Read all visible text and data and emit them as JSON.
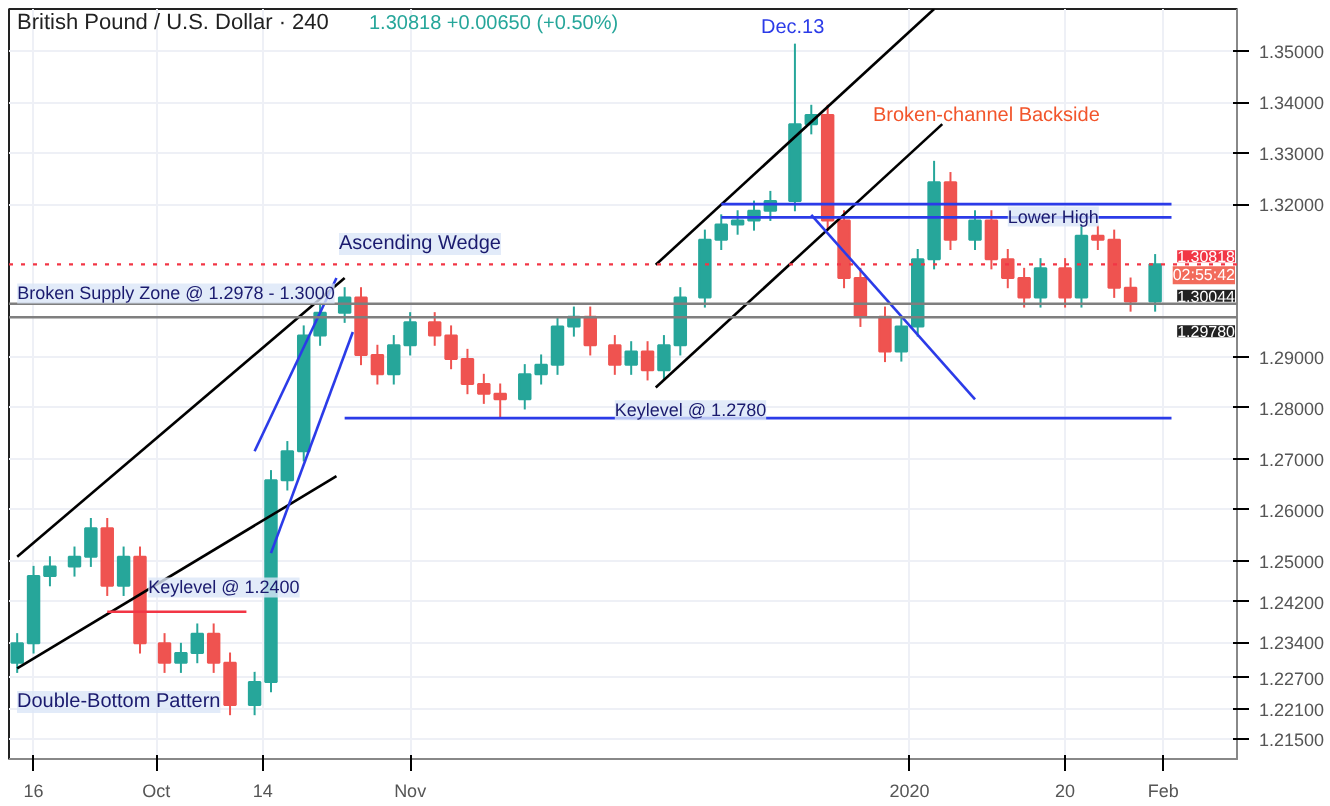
{
  "chart_data": {
    "type": "candlestick",
    "title": "British Pound / U.S. Dollar · 240",
    "subtitle": "1.30818  +0.00650 (+0.50%)",
    "x": [
      "2019-09-14",
      "2019-09-16",
      "2019-09-18",
      "2019-09-21",
      "2019-09-23",
      "2019-09-25",
      "2019-09-27",
      "2019-09-29",
      "2019-10-02",
      "2019-10-04",
      "2019-10-06",
      "2019-10-08",
      "2019-10-10",
      "2019-10-13",
      "2019-10-15",
      "2019-10-17",
      "2019-10-19",
      "2019-10-21",
      "2019-10-24",
      "2019-10-26",
      "2019-10-28",
      "2019-10-30",
      "2019-11-01",
      "2019-11-04",
      "2019-11-06",
      "2019-11-08",
      "2019-11-10",
      "2019-11-12",
      "2019-11-15",
      "2019-11-17",
      "2019-11-19",
      "2019-11-21",
      "2019-11-23",
      "2019-11-26",
      "2019-11-28",
      "2019-11-30",
      "2019-12-02",
      "2019-12-04",
      "2019-12-07",
      "2019-12-09",
      "2019-12-11",
      "2019-12-13",
      "2019-12-15",
      "2019-12-18",
      "2019-12-20",
      "2019-12-22",
      "2019-12-24",
      "2019-12-26",
      "2019-12-29",
      "2019-12-31",
      "2020-01-02",
      "2020-01-04",
      "2020-01-06",
      "2020-01-09",
      "2020-01-11",
      "2020-01-13",
      "2020-01-15",
      "2020-01-17",
      "2020-01-20",
      "2020-01-22",
      "2020-01-24",
      "2020-01-26",
      "2020-01-28",
      "2020-01-31"
    ],
    "ohlc": [
      [
        1.23,
        1.2358,
        1.228,
        1.2338
      ],
      [
        1.2338,
        1.249,
        1.2318,
        1.247
      ],
      [
        1.247,
        1.2509,
        1.245,
        1.2489
      ],
      [
        1.2489,
        1.2528,
        1.2469,
        1.2508
      ],
      [
        1.2508,
        1.2584,
        1.2488,
        1.2564
      ],
      [
        1.2564,
        1.2584,
        1.2431,
        1.2451
      ],
      [
        1.2451,
        1.2528,
        1.2431,
        1.2508
      ],
      [
        1.2508,
        1.2528,
        1.2318,
        1.2338
      ],
      [
        1.2338,
        1.2358,
        1.228,
        1.23
      ],
      [
        1.23,
        1.2339,
        1.228,
        1.2319
      ],
      [
        1.2319,
        1.2377,
        1.2299,
        1.2357
      ],
      [
        1.2357,
        1.2377,
        1.228,
        1.23
      ],
      [
        1.23,
        1.232,
        1.2197,
        1.2217
      ],
      [
        1.2217,
        1.2282,
        1.2197,
        1.2262
      ],
      [
        1.2262,
        1.2678,
        1.2242,
        1.2658
      ],
      [
        1.2658,
        1.2735,
        1.2638,
        1.2715
      ],
      [
        1.2715,
        1.2962,
        1.2695,
        1.2942
      ],
      [
        1.2942,
        1.3007,
        1.2922,
        1.2987
      ],
      [
        1.2987,
        1.3037,
        1.2967,
        1.3017
      ],
      [
        1.3017,
        1.3037,
        1.2884,
        1.2904
      ],
      [
        1.2904,
        1.2924,
        1.2846,
        1.2866
      ],
      [
        1.2866,
        1.2943,
        1.2846,
        1.2923
      ],
      [
        1.2923,
        1.2988,
        1.2903,
        1.2968
      ],
      [
        1.2968,
        1.2988,
        1.2922,
        1.2942
      ],
      [
        1.2942,
        1.2962,
        1.2876,
        1.2896
      ],
      [
        1.2896,
        1.2916,
        1.2827,
        1.2847
      ],
      [
        1.2847,
        1.2867,
        1.2808,
        1.2828
      ],
      [
        1.2828,
        1.2848,
        1.278,
        1.2817
      ],
      [
        1.2817,
        1.2886,
        1.2797,
        1.2866
      ],
      [
        1.2866,
        1.2905,
        1.2846,
        1.2885
      ],
      [
        1.2885,
        1.298,
        1.2865,
        1.296
      ],
      [
        1.296,
        1.2999,
        1.294,
        1.2979
      ],
      [
        1.2979,
        1.2999,
        1.2903,
        1.2923
      ],
      [
        1.2923,
        1.2943,
        1.2865,
        1.2885
      ],
      [
        1.2885,
        1.2931,
        1.2865,
        1.2911
      ],
      [
        1.2911,
        1.2931,
        1.2854,
        1.2874
      ],
      [
        1.2874,
        1.2943,
        1.2854,
        1.2923
      ],
      [
        1.2923,
        1.3037,
        1.2903,
        1.3017
      ],
      [
        1.3017,
        1.315,
        1.2997,
        1.313
      ],
      [
        1.313,
        1.318,
        1.311,
        1.316
      ],
      [
        1.316,
        1.3188,
        1.314,
        1.3168
      ],
      [
        1.3168,
        1.3207,
        1.3148,
        1.3187
      ],
      [
        1.3187,
        1.3226,
        1.3167,
        1.3206
      ],
      [
        1.3206,
        1.3515,
        1.3186,
        1.3357
      ],
      [
        1.3357,
        1.3395,
        1.3337,
        1.3375
      ],
      [
        1.3375,
        1.3395,
        1.3148,
        1.3168
      ],
      [
        1.3168,
        1.3188,
        1.3035,
        1.3055
      ],
      [
        1.3055,
        1.3075,
        1.2959,
        1.2979
      ],
      [
        1.2979,
        1.2999,
        1.289,
        1.2911
      ],
      [
        1.2911,
        1.298,
        1.2891,
        1.296
      ],
      [
        1.296,
        1.3112,
        1.294,
        1.3092
      ],
      [
        1.3092,
        1.3285,
        1.3072,
        1.3243
      ],
      [
        1.3243,
        1.3263,
        1.311,
        1.313
      ],
      [
        1.313,
        1.3188,
        1.311,
        1.3168
      ],
      [
        1.3168,
        1.3188,
        1.3072,
        1.3092
      ],
      [
        1.3092,
        1.3112,
        1.3035,
        1.3055
      ],
      [
        1.3055,
        1.3075,
        1.2997,
        1.3017
      ],
      [
        1.3017,
        1.3094,
        1.2997,
        1.3074
      ],
      [
        1.3074,
        1.3094,
        1.2997,
        1.3017
      ],
      [
        1.3017,
        1.3158,
        1.2997,
        1.3138
      ],
      [
        1.3138,
        1.3158,
        1.311,
        1.313
      ],
      [
        1.313,
        1.315,
        1.3016,
        1.3036
      ],
      [
        1.3036,
        1.3056,
        1.2989,
        1.3009
      ],
      [
        1.3009,
        1.3102,
        1.2989,
        1.3082
      ]
    ],
    "colors": [
      "#26a69a",
      "#26a69a",
      "#26a69a",
      "#26a69a",
      "#26a69a",
      "#ef5350",
      "#26a69a",
      "#ef5350",
      "#ef5350",
      "#26a69a",
      "#26a69a",
      "#ef5350",
      "#ef5350",
      "#26a69a",
      "#26a69a",
      "#26a69a",
      "#26a69a",
      "#26a69a",
      "#26a69a",
      "#ef5350",
      "#ef5350",
      "#26a69a",
      "#26a69a",
      "#ef5350",
      "#ef5350",
      "#ef5350",
      "#ef5350",
      "#ef5350",
      "#26a69a",
      "#26a69a",
      "#26a69a",
      "#26a69a",
      "#ef5350",
      "#ef5350",
      "#26a69a",
      "#ef5350",
      "#26a69a",
      "#26a69a",
      "#26a69a",
      "#26a69a",
      "#26a69a",
      "#26a69a",
      "#26a69a",
      "#26a69a",
      "#26a69a",
      "#ef5350",
      "#ef5350",
      "#ef5350",
      "#ef5350",
      "#26a69a",
      "#26a69a",
      "#26a69a",
      "#ef5350",
      "#26a69a",
      "#ef5350",
      "#ef5350",
      "#ef5350",
      "#26a69a",
      "#ef5350",
      "#26a69a",
      "#ef5350",
      "#ef5350",
      "#ef5350",
      "#26a69a"
    ],
    "series": [
      {
        "type": "line",
        "color": "#000000",
        "x": [
          "2019-09-14",
          "2019-10-23"
        ],
        "values": [
          1.2289,
          1.2666
        ]
      },
      {
        "type": "line",
        "color": "#000000",
        "x": [
          "2019-09-14",
          "2019-10-24"
        ],
        "values": [
          1.2508,
          1.3055
        ]
      },
      {
        "type": "line",
        "color": "#000000",
        "x": [
          "2019-12-01",
          "2020-01-04"
        ],
        "values": [
          1.3081,
          1.3583
        ]
      },
      {
        "type": "line",
        "color": "#000000",
        "x": [
          "2019-12-01",
          "2020-01-05"
        ],
        "values": [
          1.284,
          1.3357
        ]
      },
      {
        "type": "line",
        "color": "#2b3be8",
        "x": [
          "2019-12-20",
          "2020-01-09"
        ],
        "values": [
          1.3179,
          1.2817
        ]
      },
      {
        "type": "line",
        "color": "#2b3be8",
        "x": [
          "2019-10-13",
          "2019-10-23"
        ],
        "values": [
          1.2715,
          1.3055
        ]
      },
      {
        "type": "line",
        "color": "#2b3be8",
        "x": [
          "2019-10-15",
          "2019-10-25"
        ],
        "values": [
          1.2515,
          1.2949
        ]
      },
      {
        "type": "line",
        "color": "#2b3be8",
        "x": [
          "2019-12-09",
          "2020-02-02"
        ],
        "values": [
          1.32,
          1.32
        ]
      },
      {
        "type": "line",
        "color": "#2b3be8",
        "x": [
          "2019-12-09",
          "2020-02-02"
        ],
        "values": [
          1.3174,
          1.3174
        ]
      },
      {
        "type": "line",
        "color": "#2b3be8",
        "x": [
          "2019-10-24",
          "2020-02-02"
        ],
        "values": [
          1.278,
          1.278
        ]
      },
      {
        "type": "line",
        "color": "#f23645",
        "x": [
          "2019-09-25",
          "2019-10-12"
        ],
        "values": [
          1.24,
          1.24
        ]
      }
    ],
    "ref_lines": [
      {
        "axis": "y",
        "value": 1.30044,
        "label": "1.30044",
        "color": "#7f7f7f",
        "line_style": "solid"
      },
      {
        "axis": "y",
        "value": 1.2978,
        "label": "1.29780",
        "color": "#7f7f7f",
        "line_style": "solid"
      },
      {
        "axis": "y",
        "value": 1.30818,
        "label": "1.30818",
        "color": "#f23645",
        "line_style": "dotted"
      }
    ],
    "annotations": [
      "Ascending Wedge",
      {
        "text": "Broken Supply Zone @ 1.2978 - 1.3000",
        "x": "2019-09-14",
        "y": 1.3005
      },
      {
        "text": "Keylevel @ 1.2780",
        "x": "2019-11-26",
        "y": 1.2776
      },
      {
        "text": "Keylevel @ 1.2400",
        "x": "2019-09-30",
        "y": 1.2428
      },
      "Double-Bottom Pattern",
      "Dec.13",
      "Broken-channel Backside",
      {
        "text": "Lower High",
        "x": "2020-01-13",
        "y": 1.3156
      },
      "02:55:42"
    ],
    "xlim": [
      "2019-09-13",
      "2020-02-10"
    ],
    "ylim": [
      1.2111,
      1.3583
    ],
    "xticks": [
      {
        "value": "2019-09-16",
        "label": "16"
      },
      {
        "value": "2019-10-01",
        "label": "Oct"
      },
      {
        "value": "2019-10-14",
        "label": "14"
      },
      {
        "value": "2019-11-01",
        "label": "Nov"
      },
      {
        "value": "2020-01-01",
        "label": "2020"
      },
      {
        "value": "2020-01-20",
        "label": "20"
      },
      {
        "value": "2020-02-01",
        "label": "Feb"
      }
    ],
    "yticks": [
      {
        "value": 1.35,
        "label": "1.35000"
      },
      {
        "value": 1.34,
        "label": "1.34000"
      },
      {
        "value": 1.33,
        "label": "1.33000"
      },
      {
        "value": 1.32,
        "label": "1.32000"
      },
      {
        "value": 1.29,
        "label": "1.29000"
      },
      {
        "value": 1.28,
        "label": "1.28000"
      },
      {
        "value": 1.27,
        "label": "1.27000"
      },
      {
        "value": 1.26,
        "label": "1.26000"
      },
      {
        "value": 1.25,
        "label": "1.25000"
      },
      {
        "value": 1.242,
        "label": "1.24200"
      },
      {
        "value": 1.234,
        "label": "1.23400"
      },
      {
        "value": 1.227,
        "label": "1.22700"
      },
      {
        "value": 1.221,
        "label": "1.22100"
      },
      {
        "value": 1.215,
        "label": "1.21500"
      }
    ],
    "grid": true
  }
}
